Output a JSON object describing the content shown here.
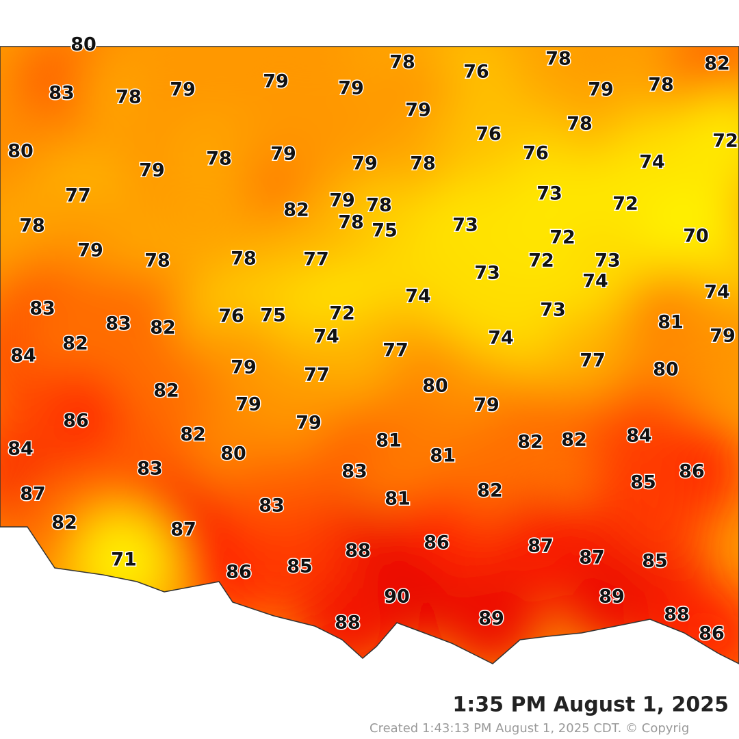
{
  "temperatures": [
    80,
    83,
    78,
    79,
    79,
    79,
    78,
    76,
    78,
    79,
    78,
    82,
    79,
    78,
    80,
    79,
    78,
    79,
    79,
    78,
    76,
    76,
    74,
    72,
    77,
    73,
    72,
    82,
    79,
    78,
    78,
    75,
    73,
    72,
    70,
    78,
    79,
    78,
    78,
    77,
    72,
    73,
    73,
    74,
    74,
    74,
    83,
    83,
    82,
    76,
    75,
    72,
    74,
    73,
    81,
    79,
    84,
    82,
    74,
    77,
    77,
    80,
    79,
    77,
    82,
    80,
    86,
    79,
    79,
    79,
    82,
    81,
    84,
    82,
    82,
    84,
    81,
    80,
    83,
    83,
    86,
    85,
    87,
    81,
    82,
    83,
    82,
    87,
    86,
    87,
    88,
    87,
    85,
    71,
    86,
    85,
    90,
    89,
    89,
    88,
    88,
    86
  ],
  "footer": {
    "observation_time": "1:35 PM August 1, 2025",
    "created": "Created 1:43:13 PM August 1, 2025 CDT. © Copyrig"
  }
}
